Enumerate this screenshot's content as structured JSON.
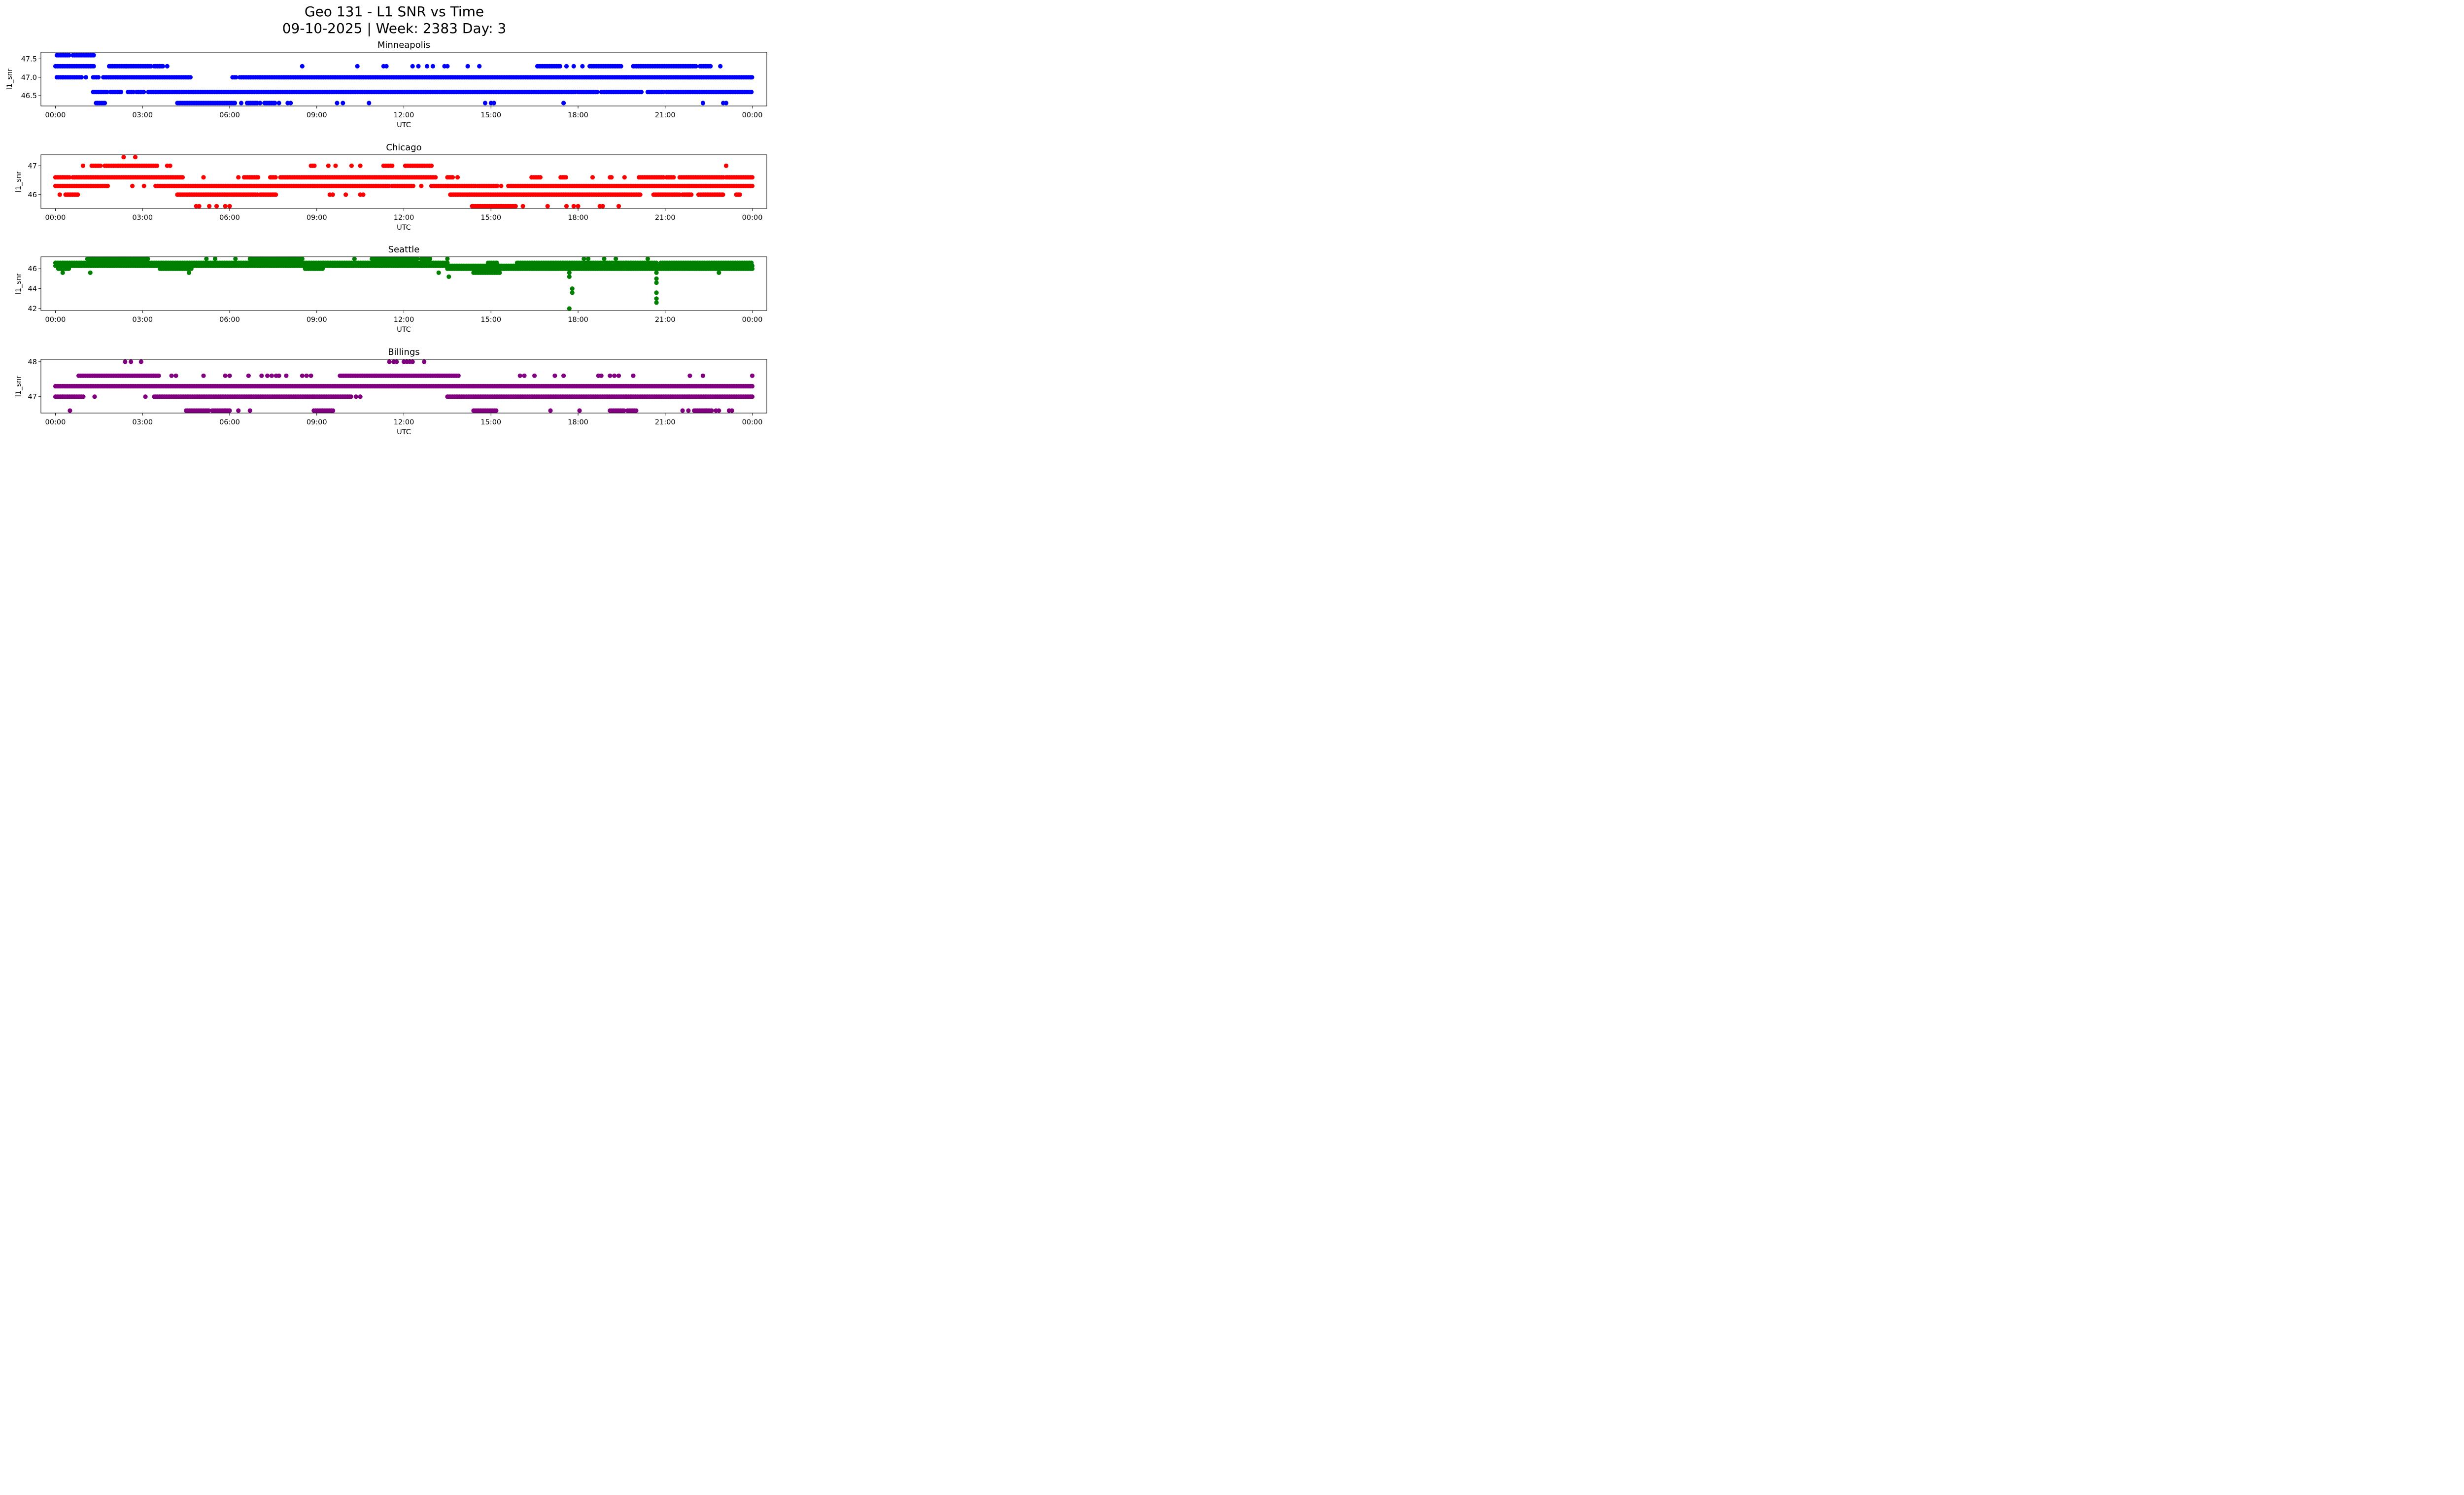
{
  "chart_data": {
    "title": "Geo 131 - L1 SNR vs Time",
    "subtitle": "09-10-2025 | Week: 2383 Day: 3",
    "type": "scatter",
    "x_unit": "hours UTC",
    "xlim": [
      -0.5,
      24.5
    ],
    "xticks": [
      0,
      3,
      6,
      9,
      12,
      15,
      18,
      21,
      24
    ],
    "xtick_labels": [
      "00:00",
      "03:00",
      "06:00",
      "09:00",
      "12:00",
      "15:00",
      "18:00",
      "21:00",
      "00:00"
    ],
    "panels": [
      {
        "title": "Minneapolis",
        "xlabel": "UTC",
        "ylabel": "l1_snr",
        "color": "#0000ff",
        "ylim": [
          46.22,
          47.68
        ],
        "yticks": [
          46.5,
          47.0,
          47.5
        ],
        "ytick_labels": [
          "46.5",
          "47.0",
          "47.5"
        ],
        "runs": [
          {
            "y": 47.6,
            "x": [
              [
                0.05,
                0.5
              ],
              [
                0.6,
                1.35
              ]
            ]
          },
          {
            "y": 47.3,
            "x": [
              [
                0.0,
                1.35
              ],
              [
                1.85,
                3.3
              ],
              [
                3.4,
                3.7
              ],
              [
                16.6,
                17.4
              ],
              [
                18.4,
                19.5
              ],
              [
                19.9,
                22.1
              ],
              [
                22.2,
                22.6
              ]
            ]
          },
          {
            "y": 47.0,
            "x": [
              [
                0.05,
                0.55
              ],
              [
                0.6,
                0.9
              ],
              [
                1.3,
                1.5
              ],
              [
                1.65,
                4.7
              ],
              [
                6.1,
                6.25
              ],
              [
                6.35,
                24.0
              ]
            ]
          },
          {
            "y": 46.6,
            "x": [
              [
                1.3,
                1.8
              ],
              [
                1.9,
                2.3
              ],
              [
                2.5,
                2.7
              ],
              [
                2.8,
                3.05
              ],
              [
                3.2,
                17.9
              ],
              [
                18.0,
                18.7
              ],
              [
                18.8,
                20.2
              ],
              [
                20.4,
                20.95
              ],
              [
                21.05,
                21.35
              ],
              [
                21.4,
                23.2
              ],
              [
                23.25,
                24.0
              ]
            ]
          },
          {
            "y": 46.3,
            "x": [
              [
                1.4,
                1.75
              ],
              [
                4.2,
                6.2
              ],
              [
                6.6,
                6.9
              ],
              [
                7.2,
                7.6
              ]
            ]
          }
        ],
        "points": [
          {
            "y": 46.3,
            "x": [
              1.45,
              6.4,
              6.95,
              7.05,
              7.7,
              8.0,
              8.1,
              9.7,
              9.9,
              10.8,
              14.8,
              15.0,
              15.1,
              17.5,
              22.3,
              23.0,
              23.1
            ]
          },
          {
            "y": 47.3,
            "x": [
              3.85,
              8.5,
              10.4,
              11.3,
              11.4,
              12.3,
              12.5,
              12.8,
              13.0,
              13.4,
              13.5,
              14.2,
              14.6,
              17.6,
              17.85,
              18.15,
              22.9
            ]
          },
          {
            "y": 47.0,
            "x": [
              1.05
            ]
          }
        ]
      },
      {
        "title": "Chicago",
        "xlabel": "UTC",
        "ylabel": "l1_snr",
        "color": "#ff0000",
        "ylim": [
          45.52,
          47.38
        ],
        "yticks": [
          46,
          47
        ],
        "ytick_labels": [
          "46",
          "47"
        ],
        "runs": [
          {
            "y": 47.0,
            "x": [
              [
                1.25,
                1.6
              ],
              [
                1.7,
                3.5
              ],
              [
                8.8,
                8.95
              ],
              [
                11.3,
                11.6
              ],
              [
                12.05,
                13.0
              ]
            ]
          },
          {
            "y": 46.6,
            "x": [
              [
                0.0,
                0.5
              ],
              [
                0.6,
                4.4
              ],
              [
                6.5,
                7.0
              ],
              [
                7.4,
                7.6
              ],
              [
                7.75,
                13.1
              ],
              [
                13.5,
                13.7
              ],
              [
                16.4,
                16.75
              ],
              [
                17.4,
                17.6
              ],
              [
                20.1,
                20.95
              ],
              [
                21.05,
                21.3
              ],
              [
                21.5,
                23.0
              ],
              [
                23.1,
                24.0
              ]
            ]
          },
          {
            "y": 46.3,
            "x": [
              [
                0.0,
                1.8
              ],
              [
                3.45,
                11.5
              ],
              [
                11.6,
                12.35
              ],
              [
                12.95,
                14.5
              ],
              [
                14.55,
                15.25
              ],
              [
                15.6,
                24.0
              ]
            ]
          },
          {
            "y": 46.0,
            "x": [
              [
                0.35,
                0.8
              ],
              [
                4.2,
                7.0
              ],
              [
                7.05,
                7.6
              ],
              [
                13.6,
                20.15
              ],
              [
                20.6,
                21.5
              ],
              [
                21.6,
                21.9
              ],
              [
                22.15,
                23.0
              ],
              [
                23.45,
                23.6
              ]
            ]
          },
          {
            "y": 45.6,
            "x": [
              [
                14.35,
                15.85
              ]
            ]
          }
        ],
        "points": [
          {
            "y": 47.3,
            "x": [
              2.35,
              2.75
            ]
          },
          {
            "y": 47.0,
            "x": [
              0.95,
              3.85,
              3.95,
              9.4,
              9.65,
              10.2,
              10.5,
              23.1
            ]
          },
          {
            "y": 46.6,
            "x": [
              5.1,
              6.3,
              13.85,
              18.5,
              19.1,
              19.15,
              19.6
            ]
          },
          {
            "y": 46.3,
            "x": [
              2.65,
              3.05,
              12.6,
              13.5,
              15.35
            ]
          },
          {
            "y": 46.0,
            "x": [
              0.15,
              9.45,
              9.55,
              10.0,
              10.5,
              10.6
            ]
          },
          {
            "y": 45.6,
            "x": [
              4.85,
              4.95,
              5.3,
              5.55,
              5.85,
              6.0,
              16.1,
              16.95,
              17.6,
              17.85,
              18.0,
              18.75,
              18.85,
              19.4
            ]
          }
        ]
      },
      {
        "title": "Seattle",
        "xlabel": "UTC",
        "ylabel": "l1_snr",
        "color": "#008000",
        "ylim": [
          41.8,
          47.2
        ],
        "yticks": [
          42,
          44,
          46
        ],
        "ytick_labels": [
          "42",
          "44",
          "46"
        ],
        "runs": [
          {
            "y": 47.0,
            "x": [
              [
                1.1,
                2.6
              ],
              [
                2.7,
                3.2
              ],
              [
                6.7,
                8.5
              ],
              [
                10.9,
                12.5
              ],
              [
                12.6,
                12.9
              ]
            ]
          },
          {
            "y": 46.6,
            "x": [
              [
                0.0,
                13.5
              ],
              [
                14.9,
                15.2
              ],
              [
                15.9,
                20.7
              ],
              [
                20.85,
                23.8
              ],
              [
                23.85,
                24.0
              ]
            ]
          },
          {
            "y": 46.3,
            "x": [
              [
                0.0,
                24.0
              ]
            ]
          },
          {
            "y": 46.0,
            "x": [
              [
                0.1,
                0.5
              ],
              [
                3.6,
                4.7
              ],
              [
                8.6,
                9.2
              ],
              [
                13.5,
                24.0
              ]
            ]
          },
          {
            "y": 45.6,
            "x": [
              [
                14.4,
                15.3
              ]
            ]
          }
        ],
        "points": [
          {
            "y": 47.0,
            "x": [
              5.2,
              5.5,
              6.2,
              10.3,
              13.5,
              18.2,
              18.35,
              18.9,
              19.3,
              20.4
            ]
          },
          {
            "y": 45.6,
            "x": [
              0.25,
              1.2,
              4.6,
              13.2,
              17.7,
              20.7,
              22.85
            ]
          },
          {
            "y": 45.2,
            "x": [
              13.55,
              17.7
            ]
          },
          {
            "y": 45.0,
            "x": [
              20.7
            ]
          },
          {
            "y": 44.6,
            "x": [
              20.7
            ]
          },
          {
            "y": 44.0,
            "x": [
              17.8
            ]
          },
          {
            "y": 43.6,
            "x": [
              17.8,
              20.7
            ]
          },
          {
            "y": 43.0,
            "x": [
              20.7
            ]
          },
          {
            "y": 42.6,
            "x": [
              20.7
            ]
          },
          {
            "y": 42.0,
            "x": [
              17.7
            ]
          }
        ]
      },
      {
        "title": "Billings",
        "xlabel": "UTC",
        "ylabel": "l1_snr",
        "color": "#800080",
        "ylim": [
          46.53,
          48.07
        ],
        "yticks": [
          47,
          48
        ],
        "ytick_labels": [
          "47",
          "48"
        ],
        "runs": [
          {
            "y": 47.6,
            "x": [
              [
                0.8,
                3.6
              ],
              [
                9.8,
                13.9
              ]
            ]
          },
          {
            "y": 47.3,
            "x": [
              [
                0.0,
                24.0
              ]
            ]
          },
          {
            "y": 47.0,
            "x": [
              [
                0.0,
                1.0
              ],
              [
                3.4,
                10.2
              ],
              [
                13.5,
                24.0
              ]
            ]
          },
          {
            "y": 46.6,
            "x": [
              [
                4.5,
                5.3
              ],
              [
                5.4,
                6.0
              ],
              [
                8.9,
                9.6
              ],
              [
                14.4,
                15.2
              ],
              [
                19.1,
                19.6
              ],
              [
                19.7,
                20.0
              ],
              [
                22.0,
                22.6
              ]
            ]
          }
        ],
        "points": [
          {
            "y": 48.0,
            "x": [
              2.4,
              2.6,
              2.95,
              11.5,
              11.65,
              11.75,
              12.0,
              12.1,
              12.2,
              12.3,
              12.7
            ]
          },
          {
            "y": 47.6,
            "x": [
              4.0,
              4.15,
              5.1,
              5.85,
              6.0,
              6.65,
              7.1,
              7.3,
              7.45,
              7.6,
              7.7,
              7.95,
              8.5,
              8.65,
              8.8,
              16.0,
              16.15,
              16.5,
              17.2,
              17.5,
              18.7,
              18.8,
              19.1,
              19.25,
              19.4,
              19.9,
              21.85,
              22.3,
              24.0
            ]
          },
          {
            "y": 47.0,
            "x": [
              1.35,
              3.1,
              10.35,
              10.5
            ]
          },
          {
            "y": 46.6,
            "x": [
              0.5,
              5.85,
              6.3,
              6.7,
              9.2,
              17.05,
              18.05,
              21.6,
              21.8,
              22.4,
              22.75,
              22.85,
              23.2,
              23.3
            ]
          }
        ]
      }
    ]
  }
}
